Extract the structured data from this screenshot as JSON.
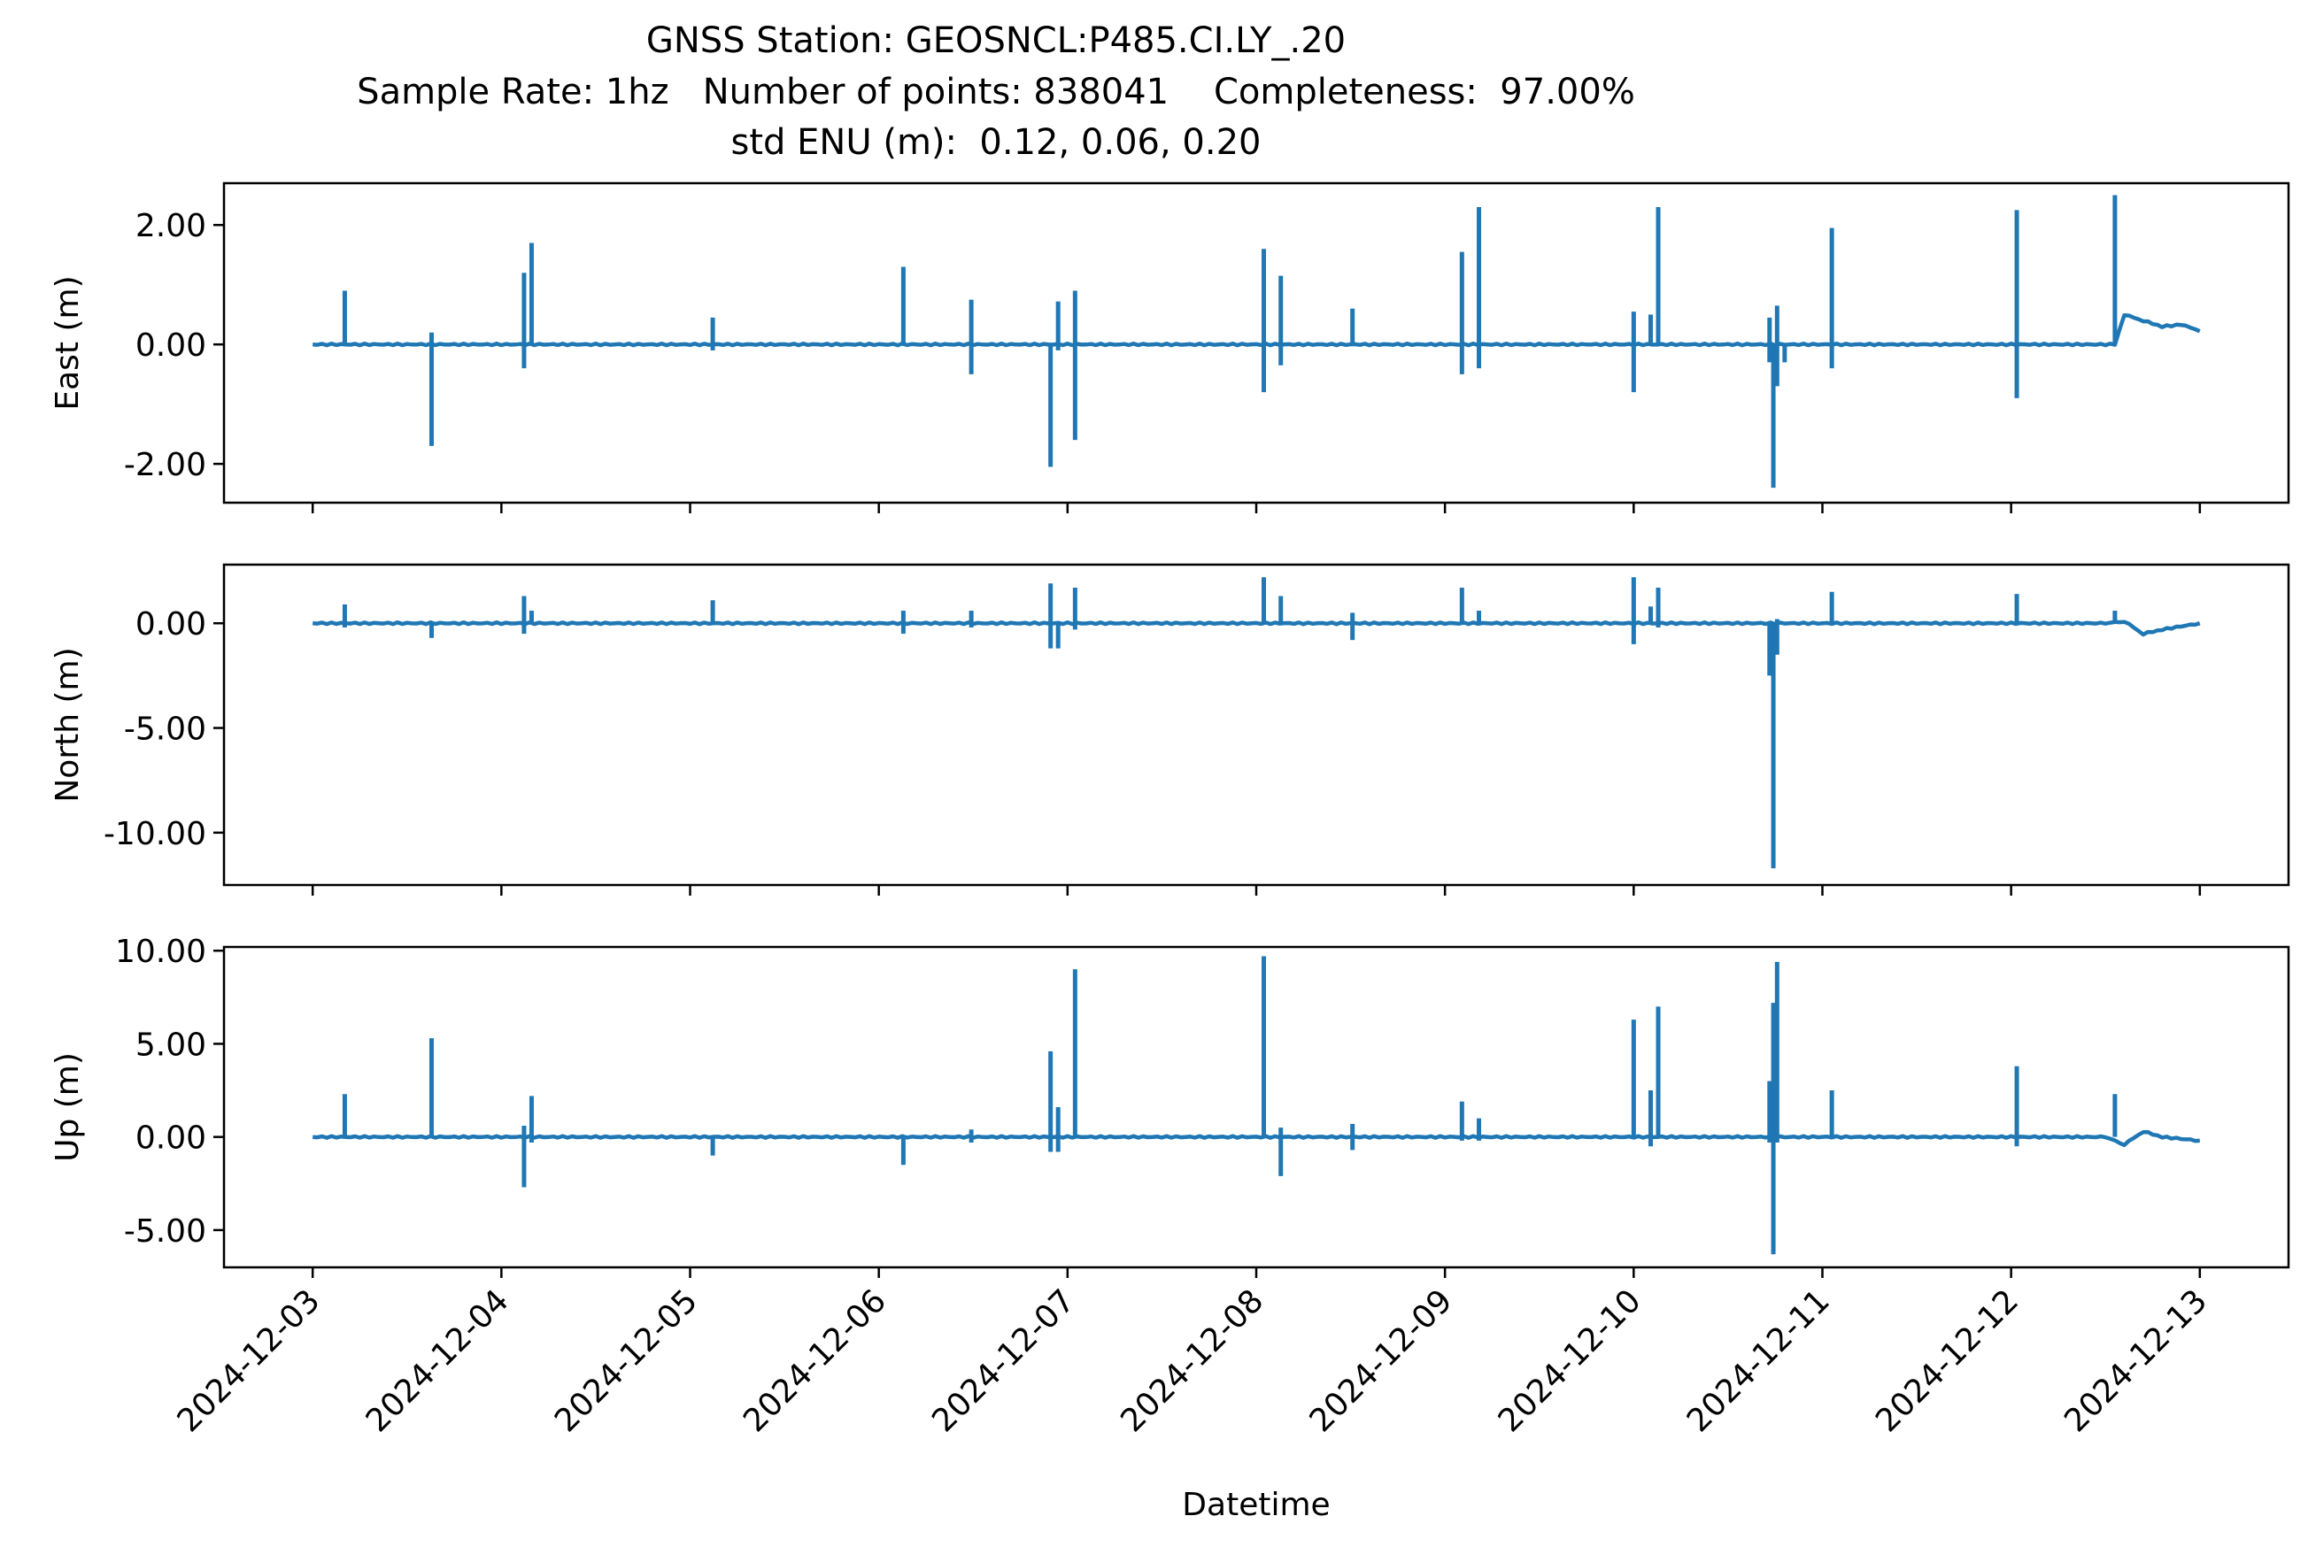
{
  "title": {
    "line1": "GNSS Station: GEOSNCL:P485.CI.LY_.20",
    "line2": "Sample Rate: 1hz   Number of points: 838041    Completeness:  97.00%",
    "line3": "std ENU (m):  0.12, 0.06, 0.20"
  },
  "chart_data": [
    {
      "type": "line",
      "ylabel": "East (m)",
      "xlabel": "",
      "color": "#1f77b4",
      "ylim": [
        -2.65,
        2.7
      ],
      "yticks": [
        2.0,
        0.0,
        -2.0
      ],
      "ytick_labels": [
        "2.00",
        "0.00",
        "-2.00"
      ],
      "xlim": [
        -0.47,
        10.47
      ],
      "x_dates": [
        "2024-12-03",
        "2024-12-04",
        "2024-12-05",
        "2024-12-06",
        "2024-12-07",
        "2024-12-08",
        "2024-12-09",
        "2024-12-10",
        "2024-12-11",
        "2024-12-12",
        "2024-12-13"
      ],
      "x_start_date": "2024-12-03",
      "baseline": [
        [
          0.0,
          0.0
        ],
        [
          9.55,
          0.0
        ],
        [
          9.6,
          0.5
        ],
        [
          9.7,
          0.4
        ],
        [
          9.8,
          0.3
        ],
        [
          9.9,
          0.33
        ],
        [
          9.95,
          0.28
        ],
        [
          10.0,
          0.22
        ]
      ],
      "spikes": [
        [
          0.17,
          0.9,
          0.0
        ],
        [
          0.63,
          0.2,
          -1.7
        ],
        [
          1.12,
          1.2,
          -0.4
        ],
        [
          1.16,
          1.7,
          0.0
        ],
        [
          2.12,
          0.45,
          -0.1
        ],
        [
          3.13,
          1.3,
          0.0
        ],
        [
          3.49,
          0.75,
          -0.5
        ],
        [
          3.91,
          0.0,
          -2.05
        ],
        [
          3.95,
          0.72,
          -0.1
        ],
        [
          4.04,
          0.9,
          -1.6
        ],
        [
          5.04,
          1.6,
          -0.8
        ],
        [
          5.13,
          1.15,
          -0.35
        ],
        [
          5.51,
          0.6,
          0.0
        ],
        [
          6.09,
          1.55,
          -0.5
        ],
        [
          6.18,
          2.3,
          -0.4
        ],
        [
          7.0,
          0.55,
          -0.8
        ],
        [
          7.09,
          0.5,
          0.0
        ],
        [
          7.13,
          2.3,
          0.0
        ],
        [
          7.72,
          0.45,
          -0.3
        ],
        [
          7.74,
          0.0,
          -2.4
        ],
        [
          7.76,
          0.65,
          -0.7
        ],
        [
          7.8,
          0.0,
          -0.3
        ],
        [
          8.05,
          1.95,
          -0.4
        ],
        [
          9.03,
          2.25,
          -0.9
        ],
        [
          9.55,
          2.5,
          0.0
        ]
      ]
    },
    {
      "type": "line",
      "ylabel": "North (m)",
      "xlabel": "",
      "color": "#1f77b4",
      "ylim": [
        -12.5,
        2.8
      ],
      "yticks": [
        0.0,
        -5.0,
        -10.0
      ],
      "ytick_labels": [
        "0.00",
        "-5.00",
        "-10.00"
      ],
      "xlim": [
        -0.47,
        10.47
      ],
      "x_dates": [
        "2024-12-03",
        "2024-12-04",
        "2024-12-05",
        "2024-12-06",
        "2024-12-07",
        "2024-12-08",
        "2024-12-09",
        "2024-12-10",
        "2024-12-11",
        "2024-12-12",
        "2024-12-13"
      ],
      "x_start_date": "2024-12-03",
      "baseline": [
        [
          0.0,
          0.0
        ],
        [
          9.5,
          0.0
        ],
        [
          9.6,
          0.1
        ],
        [
          9.7,
          -0.5
        ],
        [
          9.8,
          -0.3
        ],
        [
          10.0,
          0.0
        ]
      ],
      "spikes": [
        [
          0.17,
          0.9,
          -0.2
        ],
        [
          0.63,
          0.0,
          -0.7
        ],
        [
          1.12,
          1.3,
          -0.5
        ],
        [
          1.16,
          0.6,
          0.0
        ],
        [
          2.12,
          1.1,
          0.0
        ],
        [
          3.13,
          0.6,
          -0.5
        ],
        [
          3.49,
          0.6,
          -0.2
        ],
        [
          3.91,
          1.9,
          -1.2
        ],
        [
          3.95,
          0.0,
          -1.2
        ],
        [
          4.04,
          1.7,
          -0.3
        ],
        [
          5.04,
          2.2,
          0.0
        ],
        [
          5.13,
          1.3,
          0.0
        ],
        [
          5.51,
          0.5,
          -0.8
        ],
        [
          6.09,
          1.7,
          0.0
        ],
        [
          6.18,
          0.6,
          0.0
        ],
        [
          7.0,
          2.2,
          -1.0
        ],
        [
          7.09,
          0.8,
          0.0
        ],
        [
          7.13,
          1.7,
          -0.2
        ],
        [
          7.72,
          0.0,
          -2.5
        ],
        [
          7.74,
          0.0,
          -11.7
        ],
        [
          7.76,
          0.2,
          -1.5
        ],
        [
          8.05,
          1.5,
          0.0
        ],
        [
          9.03,
          1.4,
          0.0
        ],
        [
          9.55,
          0.6,
          0.0
        ]
      ]
    },
    {
      "type": "line",
      "ylabel": "Up (m)",
      "xlabel": "Datetime",
      "color": "#1f77b4",
      "ylim": [
        -7.0,
        10.2
      ],
      "yticks": [
        10.0,
        5.0,
        0.0,
        -5.0
      ],
      "ytick_labels": [
        "10.00",
        "5.00",
        "0.00",
        "-5.00"
      ],
      "xlim": [
        -0.47,
        10.47
      ],
      "x_dates": [
        "2024-12-03",
        "2024-12-04",
        "2024-12-05",
        "2024-12-06",
        "2024-12-07",
        "2024-12-08",
        "2024-12-09",
        "2024-12-10",
        "2024-12-11",
        "2024-12-12",
        "2024-12-13"
      ],
      "x_start_date": "2024-12-03",
      "baseline": [
        [
          0.0,
          0.0
        ],
        [
          9.5,
          0.0
        ],
        [
          9.6,
          -0.4
        ],
        [
          9.7,
          0.3
        ],
        [
          9.8,
          0.0
        ],
        [
          10.0,
          -0.2
        ]
      ],
      "spikes": [
        [
          0.17,
          2.3,
          0.0
        ],
        [
          0.63,
          5.3,
          0.0
        ],
        [
          1.12,
          0.6,
          -2.7
        ],
        [
          1.16,
          2.2,
          -0.3
        ],
        [
          2.12,
          0.0,
          -1.0
        ],
        [
          3.13,
          0.0,
          -1.5
        ],
        [
          3.49,
          0.4,
          -0.3
        ],
        [
          3.91,
          4.6,
          -0.8
        ],
        [
          3.95,
          1.6,
          -0.8
        ],
        [
          4.04,
          9.0,
          0.0
        ],
        [
          5.04,
          9.7,
          0.0
        ],
        [
          5.13,
          0.5,
          -2.1
        ],
        [
          5.51,
          0.7,
          -0.7
        ],
        [
          6.09,
          1.9,
          -0.2
        ],
        [
          6.18,
          1.0,
          -0.2
        ],
        [
          7.0,
          6.3,
          0.0
        ],
        [
          7.09,
          2.5,
          -0.5
        ],
        [
          7.13,
          7.0,
          0.0
        ],
        [
          7.72,
          3.0,
          -0.3
        ],
        [
          7.74,
          7.2,
          -6.3
        ],
        [
          7.76,
          9.4,
          -0.3
        ],
        [
          8.05,
          2.5,
          0.0
        ],
        [
          9.03,
          3.8,
          -0.5
        ],
        [
          9.55,
          2.3,
          0.0
        ]
      ]
    }
  ]
}
